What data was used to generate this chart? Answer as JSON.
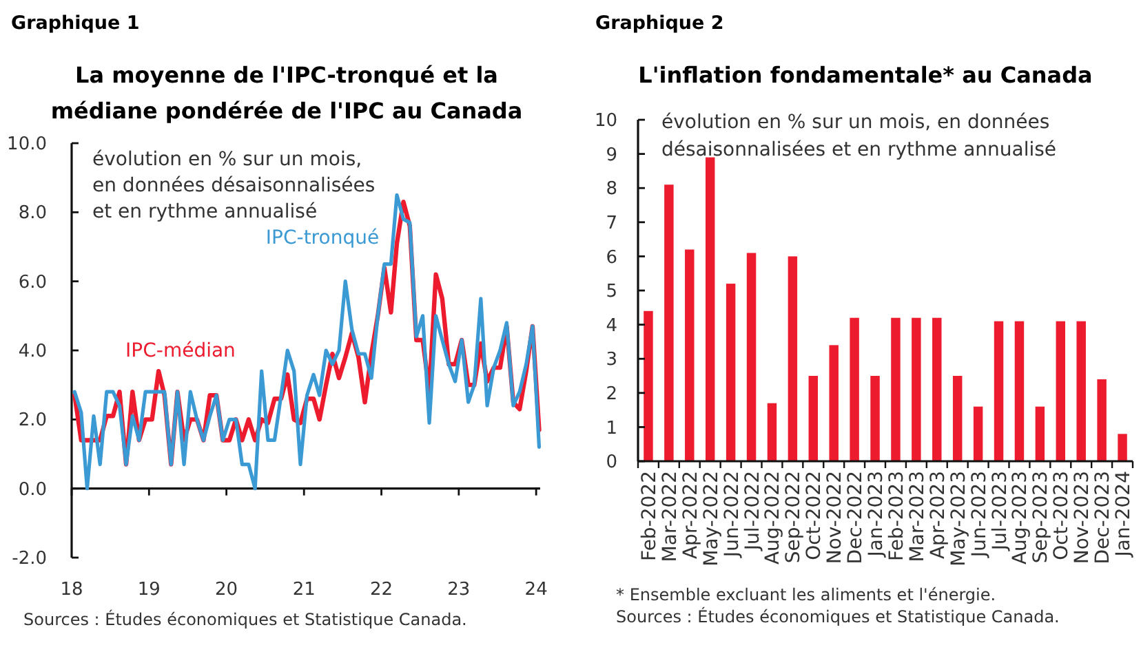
{
  "chart_data": [
    {
      "type": "line",
      "title": "La moyenne de l'IPC-tronqué et la médiane pondérée de l'IPC au Canada",
      "subtitle": "évolution en % sur un mois, en données désaisonnalisées et en rythme annualisé",
      "x": [
        "2018-01-15",
        "2018-02-15",
        "2018-03-15",
        "2018-04-15",
        "2018-05-15",
        "2018-06-15",
        "2018-07-15",
        "2018-08-15",
        "2018-09-15",
        "2018-10-15",
        "2018-11-15",
        "2018-12-15",
        "2019-01-15",
        "2019-02-15",
        "2019-03-15",
        "2019-04-15",
        "2019-05-15",
        "2019-06-15",
        "2019-07-15",
        "2019-08-15",
        "2019-09-15",
        "2019-10-15",
        "2019-11-15",
        "2019-12-15",
        "2020-01-15",
        "2020-02-15",
        "2020-03-15",
        "2020-04-15",
        "2020-05-15",
        "2020-06-15",
        "2020-07-15",
        "2020-08-15",
        "2020-09-15",
        "2020-10-15",
        "2020-11-15",
        "2020-12-15",
        "2021-01-15",
        "2021-02-15",
        "2021-03-15",
        "2021-04-15",
        "2021-05-15",
        "2021-06-15",
        "2021-07-15",
        "2021-08-15",
        "2021-09-15",
        "2021-10-15",
        "2021-11-15",
        "2021-12-15",
        "2022-01-15",
        "2022-02-15",
        "2022-03-15",
        "2022-04-15",
        "2022-05-15",
        "2022-06-15",
        "2022-07-15",
        "2022-08-15",
        "2022-09-15",
        "2022-10-15",
        "2022-11-15",
        "2022-12-15",
        "2023-01-15",
        "2023-02-15",
        "2023-03-15",
        "2023-04-15",
        "2023-05-15",
        "2023-06-15",
        "2023-07-15",
        "2023-08-15",
        "2023-09-15",
        "2023-10-15",
        "2023-11-15",
        "2023-12-15",
        "2024-01-15"
      ],
      "series": [
        {
          "name": "IPC-médian",
          "color": "#ec1c2e",
          "values": [
            2.7,
            1.4,
            1.4,
            1.4,
            1.4,
            2.1,
            2.1,
            2.8,
            0.7,
            2.8,
            1.4,
            2.0,
            2.0,
            3.4,
            2.7,
            0.7,
            2.8,
            1.4,
            2.0,
            2.0,
            1.4,
            2.7,
            2.7,
            1.4,
            1.4,
            2.0,
            1.4,
            2.0,
            1.4,
            2.0,
            1.9,
            2.6,
            2.6,
            3.3,
            2.0,
            1.9,
            2.6,
            2.6,
            2.0,
            3.0,
            3.9,
            3.2,
            3.8,
            4.5,
            3.8,
            2.5,
            3.9,
            5.0,
            6.4,
            5.1,
            7.1,
            8.3,
            7.6,
            4.3,
            4.3,
            2.8,
            6.2,
            5.5,
            3.6,
            3.6,
            4.3,
            3.0,
            3.0,
            4.2,
            3.1,
            3.5,
            3.5,
            4.7,
            2.5,
            2.3,
            3.4,
            4.7,
            1.7
          ]
        },
        {
          "name": "IPC-tronqué",
          "color": "#3b9ad4",
          "values": [
            2.8,
            2.2,
            0.0,
            2.1,
            0.7,
            2.8,
            2.8,
            2.4,
            0.7,
            2.1,
            1.4,
            2.8,
            2.8,
            2.8,
            2.8,
            0.7,
            2.8,
            0.7,
            2.8,
            2.0,
            1.4,
            2.1,
            2.7,
            1.4,
            2.0,
            2.0,
            0.7,
            0.7,
            0.0,
            3.4,
            1.4,
            1.4,
            2.7,
            4.0,
            3.4,
            0.7,
            2.7,
            3.3,
            2.7,
            4.0,
            3.6,
            4.0,
            6.0,
            4.6,
            3.9,
            3.9,
            3.2,
            5.0,
            6.5,
            6.5,
            8.5,
            7.8,
            7.7,
            4.4,
            5.0,
            1.9,
            5.0,
            4.3,
            3.6,
            3.1,
            4.3,
            2.5,
            3.0,
            5.5,
            2.4,
            3.5,
            4.0,
            4.8,
            2.4,
            2.8,
            3.6,
            4.7,
            1.2
          ]
        }
      ],
      "xlim": [
        "2018-01-01",
        "2024-01-20"
      ],
      "xticks": [
        {
          "value": "2018-01-01",
          "label": "18"
        },
        {
          "value": "2019-01-01",
          "label": "19"
        },
        {
          "value": "2020-01-01",
          "label": "20"
        },
        {
          "value": "2021-01-01",
          "label": "21"
        },
        {
          "value": "2022-01-01",
          "label": "22"
        },
        {
          "value": "2023-01-01",
          "label": "23"
        },
        {
          "value": "2024-01-01",
          "label": "24"
        }
      ],
      "ylim": [
        -2,
        10
      ],
      "yticks": [
        {
          "value": -2,
          "label": "-2.0"
        },
        {
          "value": 0,
          "label": "0.0"
        },
        {
          "value": 2,
          "label": "2.0"
        },
        {
          "value": 4,
          "label": "4.0"
        },
        {
          "value": 6,
          "label": "6.0"
        },
        {
          "value": 8,
          "label": "8.0"
        },
        {
          "value": 10,
          "label": "10.0"
        }
      ],
      "annotations": [
        "Graphique 1",
        "Sources : Études économiques et Statistique Canada."
      ]
    },
    {
      "type": "bar",
      "title": "L'inflation fondamentale* au Canada",
      "subtitle": "évolution en % sur un mois, en données désaisonnalisées et en rythme annualisé",
      "categories": [
        "Feb-2022",
        "Mar-2022",
        "Apr-2022",
        "May-2022",
        "Jun-2022",
        "Jul-2022",
        "Aug-2022",
        "Sep-2022",
        "Oct-2022",
        "Nov-2022",
        "Dec-2022",
        "Jan-2023",
        "Feb-2023",
        "Mar-2023",
        "Apr-2023",
        "May-2023",
        "Jun-2023",
        "Jul-2023",
        "Aug-2023",
        "Sep-2023",
        "Oct-2023",
        "Nov-2023",
        "Dec-2023",
        "Jan-2024"
      ],
      "values": [
        4.4,
        8.1,
        6.2,
        8.9,
        5.2,
        6.1,
        1.7,
        6.0,
        2.5,
        3.4,
        4.2,
        2.5,
        4.2,
        4.2,
        4.2,
        2.5,
        1.6,
        4.1,
        4.1,
        1.6,
        4.1,
        4.1,
        2.4,
        0.8
      ],
      "color": "#ec1c2e",
      "ylim": [
        0,
        10
      ],
      "yticks": [
        0,
        1,
        2,
        3,
        4,
        5,
        6,
        7,
        8,
        9,
        10
      ],
      "annotations": [
        "Graphique 2",
        "* Ensemble excluant les aliments et l'énergie.",
        "Sources : Études économiques et Statistique Canada."
      ]
    }
  ]
}
